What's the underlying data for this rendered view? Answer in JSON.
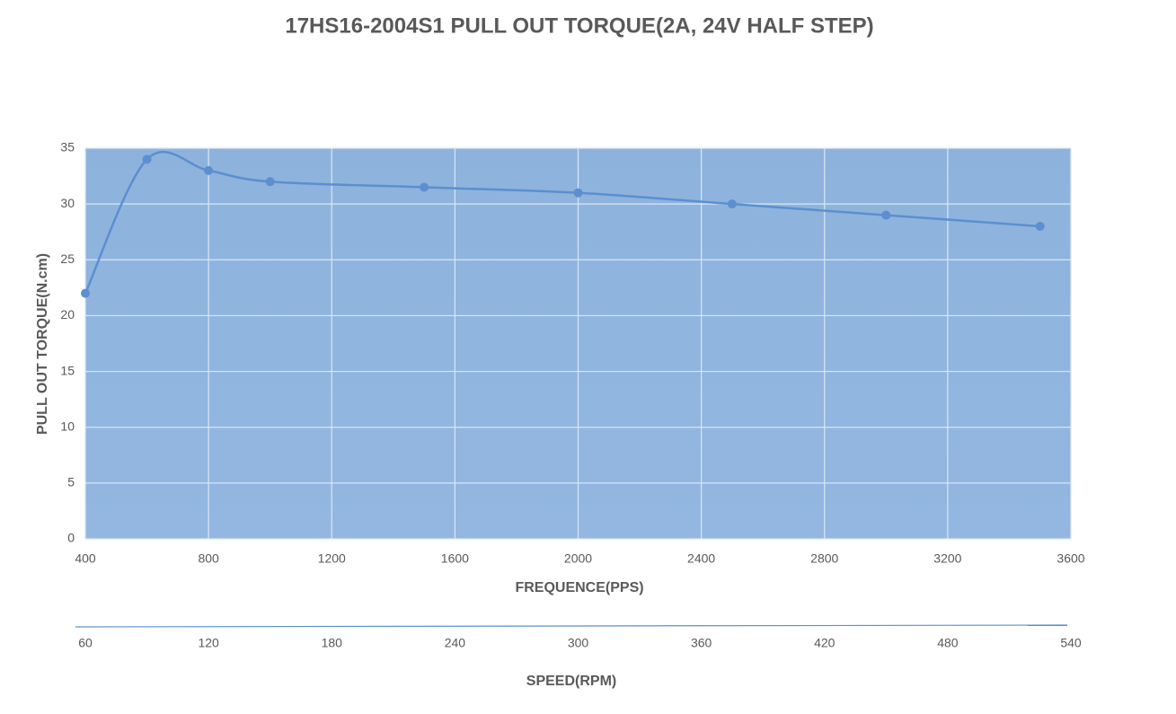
{
  "chart_data": {
    "type": "line",
    "title": "17HS16-2004S1 PULL OUT TORQUE(2A, 24V HALF STEP)",
    "x_label": "FREQUENCE(PPS)",
    "y_label": "PULL OUT TORQUE(N.cm)",
    "x2_label": "SPEED(RPM)",
    "x": [
      400,
      600,
      800,
      1000,
      1500,
      2000,
      2500,
      3000,
      3500
    ],
    "values": [
      22,
      34,
      33,
      32,
      31.5,
      31,
      30,
      29,
      28
    ],
    "color": "#5b8fd0",
    "xlim": [
      400,
      3600
    ],
    "xticks": [
      400,
      800,
      1200,
      1600,
      2000,
      2400,
      2800,
      3200,
      3600
    ],
    "ylim": [
      0,
      35
    ],
    "yticks": [
      0,
      5,
      10,
      15,
      20,
      25,
      30,
      35
    ],
    "x2lim": [
      60,
      540
    ],
    "x2ticks": [
      60,
      120,
      180,
      240,
      300,
      360,
      420,
      480,
      540
    ],
    "grid": true,
    "smooth": true
  }
}
